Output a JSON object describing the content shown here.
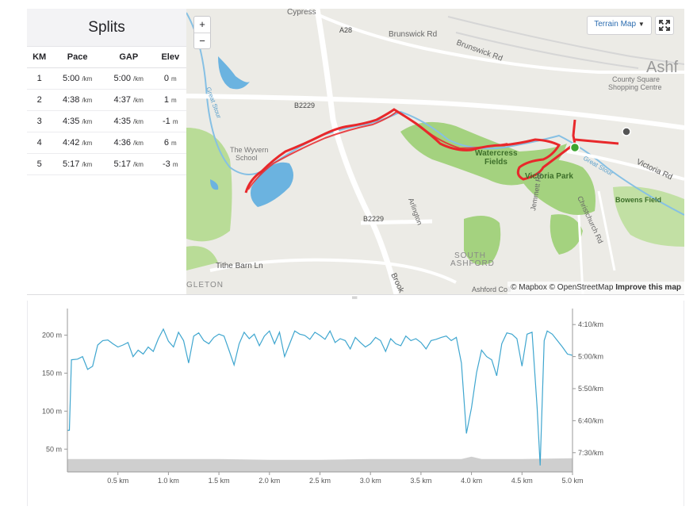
{
  "splits": {
    "title": "Splits",
    "headers": [
      "KM",
      "Pace",
      "GAP",
      "Elev"
    ],
    "rows": [
      {
        "km": "1",
        "pace": "5:00",
        "pace_unit": "/km",
        "gap": "5:00",
        "gap_unit": "/km",
        "elev": "0",
        "elev_unit": "m"
      },
      {
        "km": "2",
        "pace": "4:38",
        "pace_unit": "/km",
        "gap": "4:37",
        "gap_unit": "/km",
        "elev": "1",
        "elev_unit": "m"
      },
      {
        "km": "3",
        "pace": "4:35",
        "pace_unit": "/km",
        "gap": "4:35",
        "gap_unit": "/km",
        "elev": "-1",
        "elev_unit": "m"
      },
      {
        "km": "4",
        "pace": "4:42",
        "pace_unit": "/km",
        "gap": "4:36",
        "gap_unit": "/km",
        "elev": "6",
        "elev_unit": "m"
      },
      {
        "km": "5",
        "pace": "5:17",
        "pace_unit": "/km",
        "gap": "5:17",
        "gap_unit": "/km",
        "elev": "-3",
        "elev_unit": "m"
      }
    ]
  },
  "map": {
    "zoom_in": "+",
    "zoom_out": "−",
    "terrain_label": "Terrain Map",
    "attribution": {
      "mapbox": "© Mapbox",
      "osm": "© OpenStreetMap",
      "improve": "Improve this map"
    },
    "route_color": "#e8282b",
    "labels": {
      "cypress": "Cypress",
      "a28": "A28",
      "brunswick_rd": "Brunswick Rd",
      "brunswick_rd2": "Brunswick Rd",
      "ashford": "Ashf",
      "county_square": "County Square",
      "shopping_centre": "Shopping Centre",
      "b2229_top": "B2229",
      "b2229_bottom": "B2229",
      "wyvern1": "The Wyvern",
      "wyvern2": "School",
      "watercress1": "Watercress",
      "watercress2": "Fields",
      "victoria_park": "Victoria Park",
      "victoria_rd": "Victoria Rd",
      "bowens_field": "Bowens Field",
      "arlington": "Arlington",
      "jemmett_rd": "Jemmett Rd",
      "christchurch_rd": "Christchurch Rd",
      "south": "SOUTH",
      "south_ashford": "ASHFORD",
      "tithe_barn": "Tithe Barn Ln",
      "gleton": "GLETON",
      "brook": "Brook",
      "ashford_coll": "Ashford Coll",
      "great_stour": "Great Stour"
    }
  },
  "chart_data": {
    "type": "line",
    "x_label_unit": "km",
    "xlim": [
      0,
      5.0
    ],
    "x_ticks": [
      "0.5 km",
      "1.0 km",
      "1.5 km",
      "2.0 km",
      "2.5 km",
      "3.0 km",
      "3.5 km",
      "4.0 km",
      "4.5 km",
      "5.0 km"
    ],
    "x_tick_values": [
      0.5,
      1.0,
      1.5,
      2.0,
      2.5,
      3.0,
      3.5,
      4.0,
      4.5,
      5.0
    ],
    "left_axis": {
      "ticks": [
        "200 m",
        "150 m",
        "100 m",
        "50 m"
      ],
      "values": [
        200,
        150,
        100,
        50
      ],
      "range": [
        20,
        235
      ]
    },
    "right_axis": {
      "ticks": [
        "4:10/km",
        "5:00/km",
        "5:50/km",
        "6:40/km",
        "7:30/km"
      ],
      "values": [
        250,
        300,
        350,
        400,
        450
      ],
      "range": [
        225,
        480
      ],
      "inverted": true
    },
    "series": [
      {
        "type": "line",
        "color": "#3fa6cf",
        "x": [
          0.0,
          0.02,
          0.04,
          0.1,
          0.15,
          0.2,
          0.25,
          0.3,
          0.35,
          0.4,
          0.45,
          0.5,
          0.55,
          0.6,
          0.65,
          0.7,
          0.75,
          0.8,
          0.85,
          0.9,
          0.95,
          1.0,
          1.05,
          1.1,
          1.15,
          1.2,
          1.25,
          1.3,
          1.35,
          1.4,
          1.45,
          1.5,
          1.55,
          1.6,
          1.65,
          1.7,
          1.75,
          1.8,
          1.85,
          1.9,
          1.95,
          2.0,
          2.05,
          2.1,
          2.15,
          2.2,
          2.25,
          2.3,
          2.35,
          2.4,
          2.45,
          2.5,
          2.55,
          2.6,
          2.65,
          2.7,
          2.75,
          2.8,
          2.85,
          2.9,
          2.95,
          3.0,
          3.05,
          3.1,
          3.15,
          3.2,
          3.25,
          3.3,
          3.35,
          3.4,
          3.45,
          3.5,
          3.55,
          3.6,
          3.65,
          3.7,
          3.75,
          3.8,
          3.85,
          3.9,
          3.95,
          4.0,
          4.05,
          4.1,
          4.15,
          4.2,
          4.25,
          4.3,
          4.35,
          4.4,
          4.45,
          4.5,
          4.55,
          4.6,
          4.65,
          4.68,
          4.7,
          4.72,
          4.75,
          4.8,
          4.85,
          4.9,
          4.95,
          5.0
        ],
        "y": [
          415,
          415,
          305,
          304,
          300,
          320,
          315,
          282,
          275,
          274,
          280,
          285,
          282,
          278,
          300,
          290,
          296,
          285,
          292,
          272,
          257,
          276,
          285,
          262,
          275,
          310,
          268,
          263,
          275,
          280,
          270,
          265,
          268,
          290,
          313,
          280,
          262,
          272,
          265,
          283,
          268,
          260,
          280,
          262,
          300,
          280,
          260,
          265,
          267,
          273,
          262,
          267,
          273,
          260,
          278,
          272,
          275,
          288,
          270,
          278,
          285,
          280,
          270,
          275,
          292,
          272,
          280,
          283,
          268,
          275,
          272,
          278,
          288,
          275,
          273,
          270,
          268,
          275,
          270,
          310,
          420,
          380,
          325,
          290,
          300,
          305,
          330,
          280,
          263,
          265,
          272,
          315,
          265,
          262,
          380,
          470,
          370,
          275,
          260,
          265,
          275,
          285,
          296,
          298
        ]
      },
      {
        "type": "area",
        "color": "#cfcfcf",
        "x": [
          0.0,
          0.5,
          1.0,
          1.5,
          2.0,
          2.5,
          3.0,
          3.5,
          3.9,
          4.0,
          4.1,
          4.5,
          5.0
        ],
        "y": [
          37,
          37,
          37,
          37,
          36,
          36,
          37,
          37,
          37,
          40,
          37,
          37,
          38
        ]
      }
    ]
  }
}
